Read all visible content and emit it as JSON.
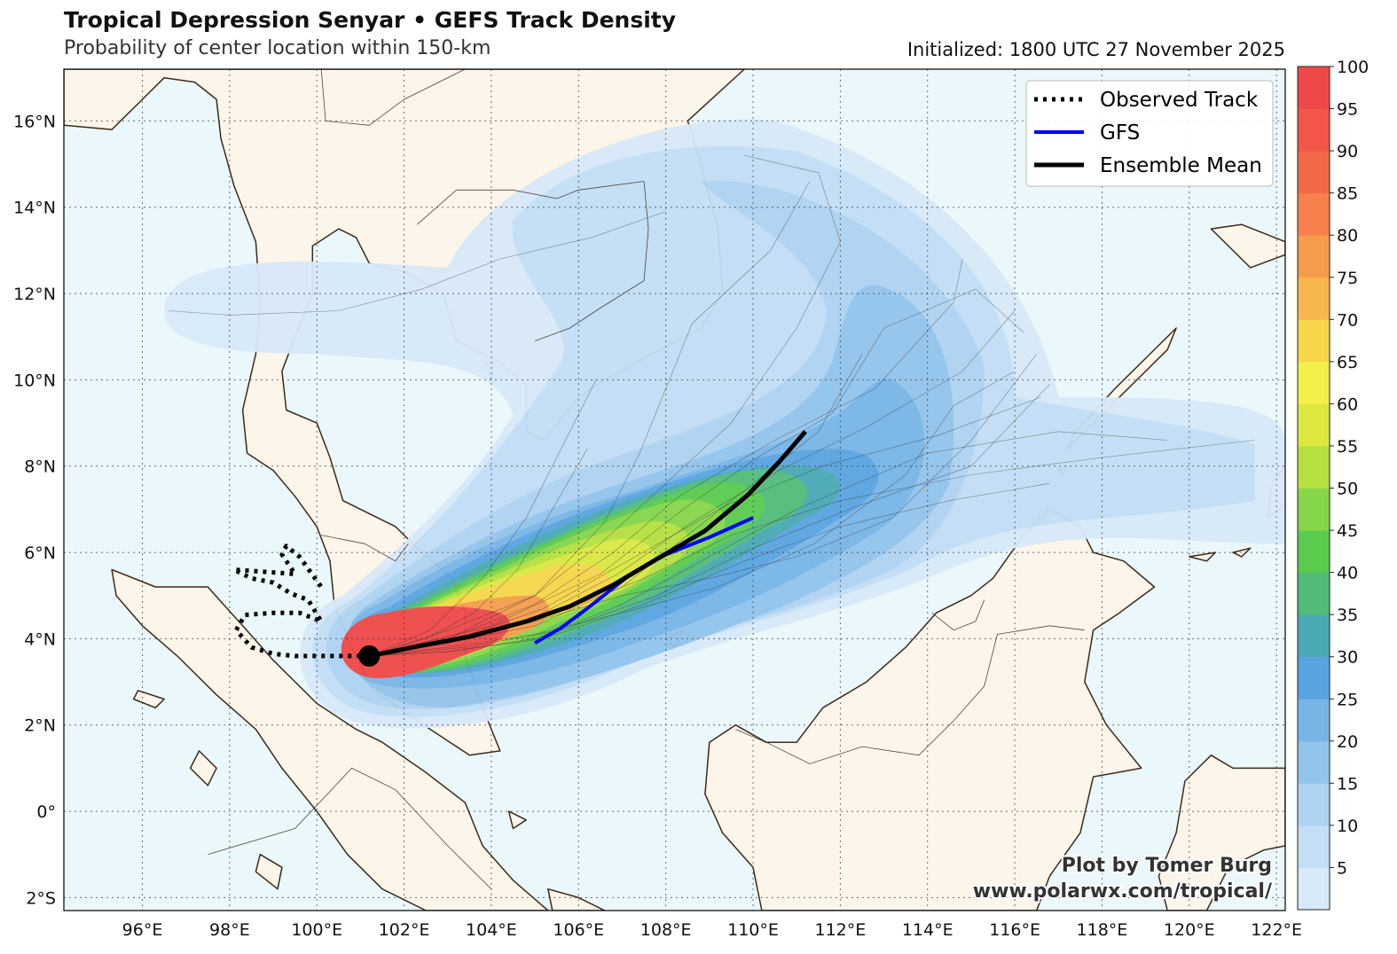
{
  "title": "Tropical Depression Senyar • GEFS Track Density",
  "subtitle": "Probability of center location within 150-km",
  "initialized": "Initialized: 1800 UTC 27 November 2025",
  "map": {
    "lon_range": [
      94.2,
      122.2
    ],
    "lat_range": [
      -2.3,
      17.2
    ],
    "lon_ticks": [
      "96°E",
      "98°E",
      "100°E",
      "102°E",
      "104°E",
      "106°E",
      "108°E",
      "110°E",
      "112°E",
      "114°E",
      "116°E",
      "118°E",
      "120°E",
      "122°E"
    ],
    "lat_ticks": [
      "2°S",
      "0°",
      "2°N",
      "4°N",
      "6°N",
      "8°N",
      "10°N",
      "12°N",
      "14°N",
      "16°N"
    ],
    "colors": {
      "ocean": "#eaf7fb",
      "land": "#fcf5ea",
      "coast": "#3d2a1a",
      "grid": "#333333"
    }
  },
  "legend": {
    "items": [
      {
        "label": "Observed Track",
        "color": "#000000",
        "style": "dotted"
      },
      {
        "label": "GFS",
        "color": "#0000ff",
        "style": "solid"
      },
      {
        "label": "Ensemble Mean",
        "color": "#000000",
        "style": "solid"
      }
    ]
  },
  "colorbar": {
    "labels": [
      "5",
      "10",
      "15",
      "20",
      "25",
      "30",
      "35",
      "40",
      "45",
      "50",
      "55",
      "60",
      "65",
      "70",
      "75",
      "80",
      "85",
      "90",
      "95",
      "100"
    ],
    "colors": [
      "#d8e9f8",
      "#c3def5",
      "#aed3f2",
      "#93c4ec",
      "#78b5e6",
      "#59a4e0",
      "#4aa9b5",
      "#52bb7a",
      "#5bcb4e",
      "#86d64a",
      "#b6e040",
      "#dce840",
      "#f3f04a",
      "#f7d64a",
      "#f6b84e",
      "#f69d4c",
      "#f6814c",
      "#f46848",
      "#f25648",
      "#ef4848"
    ]
  },
  "observed_track": {
    "points": [
      [
        101.2,
        3.6
      ],
      [
        100.5,
        3.6
      ],
      [
        99.5,
        3.6
      ],
      [
        99.0,
        3.65
      ],
      [
        98.5,
        3.8
      ],
      [
        98.15,
        4.2
      ],
      [
        98.35,
        4.55
      ],
      [
        99.0,
        4.6
      ],
      [
        99.6,
        4.6
      ],
      [
        100.1,
        4.4
      ],
      [
        99.8,
        4.9
      ],
      [
        99.4,
        5.05
      ],
      [
        99.0,
        5.3
      ],
      [
        98.5,
        5.4
      ],
      [
        98.1,
        5.6
      ],
      [
        99.5,
        5.5
      ],
      [
        99.2,
        5.95
      ],
      [
        99.3,
        6.15
      ],
      [
        99.6,
        5.9
      ],
      [
        100.1,
        5.2
      ]
    ]
  },
  "gfs_track": {
    "points": [
      [
        105.0,
        3.9
      ],
      [
        105.6,
        4.25
      ],
      [
        106.2,
        4.7
      ],
      [
        107.2,
        5.5
      ],
      [
        108.0,
        5.95
      ],
      [
        109.0,
        6.35
      ],
      [
        110.0,
        6.8
      ]
    ]
  },
  "ensemble_mean": {
    "points": [
      [
        101.2,
        3.6
      ],
      [
        102.2,
        3.8
      ],
      [
        103.5,
        4.05
      ],
      [
        104.8,
        4.4
      ],
      [
        105.8,
        4.75
      ],
      [
        106.8,
        5.25
      ],
      [
        107.8,
        5.85
      ],
      [
        108.9,
        6.5
      ],
      [
        109.9,
        7.35
      ],
      [
        110.6,
        8.1
      ],
      [
        111.2,
        8.8
      ]
    ]
  },
  "center": {
    "lon": 101.2,
    "lat": 3.6
  },
  "credit": {
    "line1": "Plot by Tomer Burg",
    "line2": "www.polarwx.com/tropical/"
  }
}
